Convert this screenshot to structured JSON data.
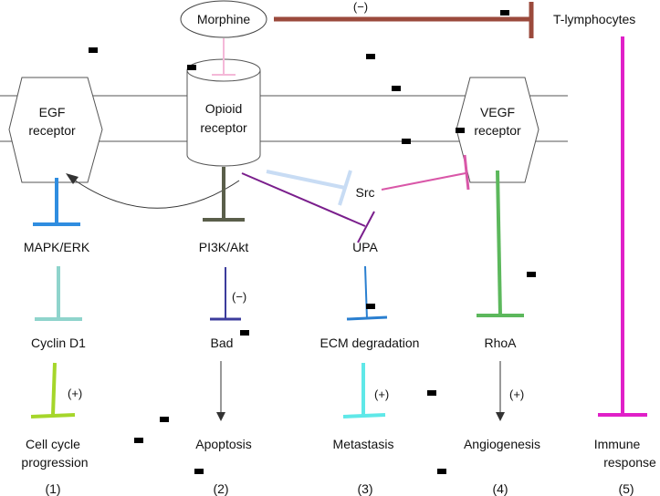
{
  "nodes": {
    "morphine": "Morphine",
    "t_lymphocytes": "T-lymphocytes",
    "egf_receptor_1": "EGF",
    "egf_receptor_2": "receptor",
    "opioid_receptor_1": "Opioid",
    "opioid_receptor_2": "receptor",
    "vegf_receptor_1": "VEGF",
    "vegf_receptor_2": "receptor",
    "src": "Src",
    "mapk_erk": "MAPK/ERK",
    "pi3k_akt": "PI3K/Akt",
    "upa": "UPA",
    "cyclin_d1": "Cyclin D1",
    "bad": "Bad",
    "ecm_degradation": "ECM degradation",
    "rhoa": "RhoA",
    "cell_cycle_1": "Cell cycle",
    "cell_cycle_2": "progression",
    "apoptosis": "Apoptosis",
    "metastasis": "Metastasis",
    "angiogenesis": "Angiogenesis",
    "immune_1": "Immune",
    "immune_2": "response"
  },
  "signs": {
    "morphine_t": "(−)",
    "bad": "(−)",
    "cyclin": "(+)",
    "ecm": "(+)",
    "rhoa": "(+)"
  },
  "columns": [
    "(1)",
    "(2)",
    "(3)",
    "(4)",
    "(5)"
  ],
  "colors": {
    "morphine_inhibition": "#9b4a3c",
    "opioid_link": "#f4b8d8",
    "egf_mapk": "#2f8de0",
    "mapk_cyclin": "#8fd4cc",
    "cyclin_cell": "#a5d62a",
    "opioid_pi3k": "#5a5e4a",
    "pi3k_bad": "#3c3c9c",
    "opioid_src": "#c8dcf4",
    "opioid_upa": "#7a1e8c",
    "src_vegf": "#d957a8",
    "upa_ecm": "#2a7fd0",
    "ecm_metastasis": "#5fe8e8",
    "vegf_rhoa": "#5cb85c",
    "t_immune": "#e020c8"
  }
}
